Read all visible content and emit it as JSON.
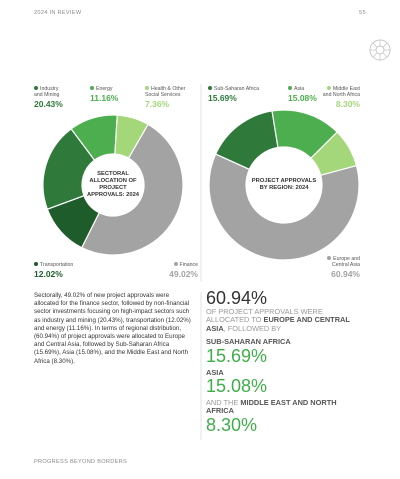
{
  "header": {
    "section": "2024 IN REVIEW",
    "page_number": "55"
  },
  "chart_data": [
    {
      "type": "pie",
      "title": "SECTORAL ALLOCATION OF PROJECT APPROVALS: 2024",
      "categories": [
        "Finance",
        "Transportation",
        "Industry and Mining",
        "Energy",
        "Health & Other Social Services"
      ],
      "values": [
        49.02,
        12.02,
        20.43,
        11.16,
        7.36
      ],
      "value_labels": [
        "49.02%",
        "12.02%",
        "20.43%",
        "11.16%",
        "7.36%"
      ],
      "colors": [
        "#a3a3a3",
        "#1f5c2c",
        "#2f7a3b",
        "#4cae4f",
        "#a4d67a"
      ]
    },
    {
      "type": "pie",
      "title": "PROJECT APPROVALS BY REGION: 2024",
      "categories": [
        "Europe and Central Asia",
        "Sub-Saharan Africa",
        "Asia",
        "Middle East and North Africa"
      ],
      "values": [
        60.94,
        15.69,
        15.08,
        8.3
      ],
      "value_labels": [
        "60.94%",
        "15.69%",
        "15.08%",
        "8.30%"
      ],
      "colors": [
        "#a3a3a3",
        "#2f7a3b",
        "#4cae4f",
        "#a4d67a"
      ]
    }
  ],
  "body": "Sectorally, 49.02% of new project approvals were allocated for the finance sector, followed by non-financial sector investments focusing on high-impact sectors such as industry and mining (20.43%), transportation (12.02%) and energy (11.16%). In terms of regional distribution, (60.94%) of project approvals were allocated to Europe and Central Asia, followed by Sub-Saharan Africa (15.69%), Asia (15.08%), and the Middle East and North Africa (8.30%).",
  "callout": {
    "figure_1": "60.94%",
    "text_1a": "OF PROJECT APPROVALS WERE ALLOCATED TO",
    "region_1": "EUROPE AND CENTRAL ASIA",
    "text_1b": ", FOLLOWED BY",
    "region_2": "SUB-SAHARAN AFRICA",
    "figure_2": "15.69%",
    "region_3": "ASIA",
    "figure_3": "15.08%",
    "text_4": "AND THE",
    "region_4": "MIDDLE EAST AND NORTH AFRICA",
    "figure_4": "8.30%"
  },
  "footer": "PROGRESS BEYOND BORDERS"
}
